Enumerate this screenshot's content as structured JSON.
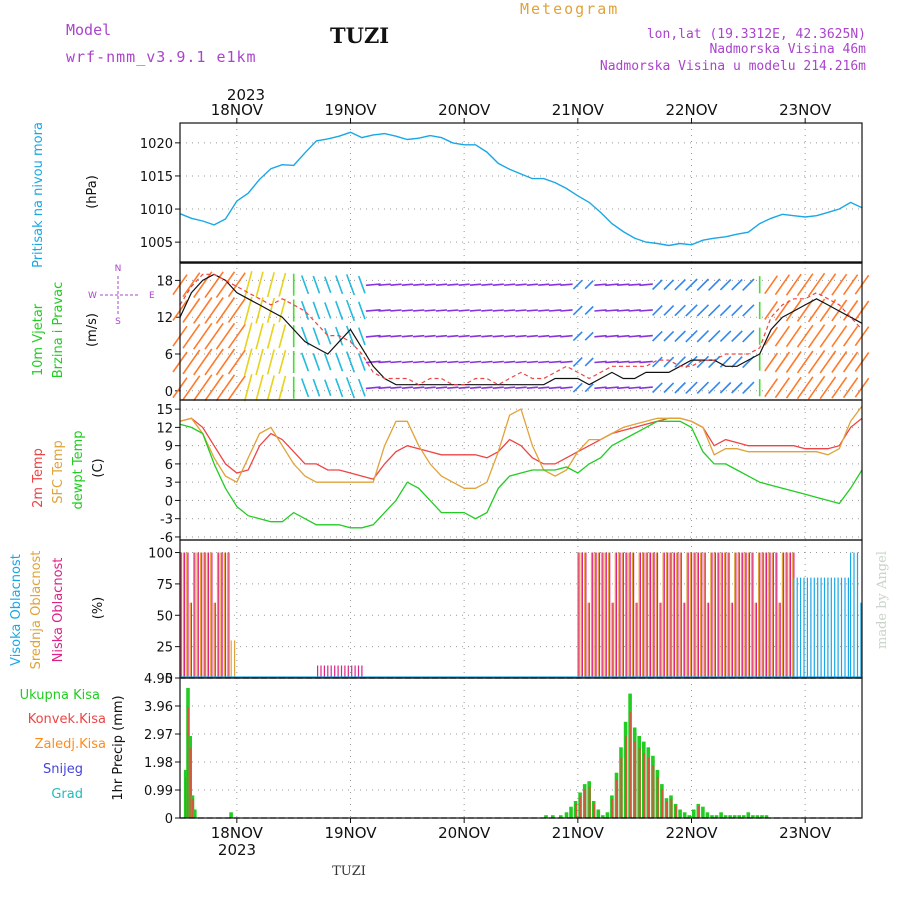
{
  "header": {
    "model_label": "Model",
    "model_name": "wrf-nmm_v3.9.1  e1km",
    "station_title": "TUZI",
    "meteogram_label": "Meteogram",
    "coords": "lon,lat (19.3312E, 42.3625N)",
    "altitude": "Nadmorska Visina 46m",
    "model_altitude": "Nadmorska Visina u modelu 214.216m",
    "footer_station": "TUZI",
    "credit": "made by Angel"
  },
  "colors": {
    "pressure": "#1aa7e6",
    "t2m": "#ee4444",
    "sfc": "#e0a33a",
    "dewpt": "#22cc22",
    "high_cloud": "#1aa7e6",
    "mid_cloud": "#e0a33a",
    "low_cloud": "#dd2288",
    "total_precip": "#22cc22",
    "conv_precip": "#ee4444",
    "frz_precip": "#ff8c1a",
    "snow": "#4444dd",
    "grad": "#22bbbb",
    "purple_text": "#aa44cc",
    "title_orange": "#e0a33a"
  },
  "time_axis": {
    "top_year": "2023",
    "bottom_year": "2023",
    "day_labels": [
      "18NOV",
      "19NOV",
      "20NOV",
      "21NOV",
      "22NOV",
      "23NOV"
    ]
  },
  "panels": {
    "pressure": {
      "ylabel1": "Pritisak na nivou mora",
      "ylabel2": "(hPa)",
      "ticks": [
        "1005",
        "1010",
        "1015",
        "1020"
      ]
    },
    "wind": {
      "ylabel1": "10m Vjetar",
      "ylabel2": "Brzina i Pravac",
      "ylabel3": "(m/s)",
      "ticks": [
        "0",
        "6",
        "12",
        "18"
      ],
      "compass": {
        "n": "N",
        "w": "W",
        "e": "E",
        "s": "S"
      }
    },
    "temp": {
      "ylabel1": "2m Temp",
      "ylabel2": "SFC Temp",
      "ylabel3": "dewpt Temp",
      "ylabel4": "(C)",
      "ticks": [
        "-6",
        "-3",
        "0",
        "3",
        "6",
        "9",
        "12",
        "15"
      ]
    },
    "cloud": {
      "ylabel1": "Visoka Oblacnost",
      "ylabel2": "Srednja Oblacnost",
      "ylabel3": "Niska Oblacnost",
      "ylabel4": "(%)",
      "ticks": [
        "0",
        "25",
        "50",
        "75",
        "100"
      ]
    },
    "precip": {
      "legend": [
        "Ukupna Kisa",
        "Konvek.Kisa",
        "Zaledj.Kisa",
        "Snijeg",
        "Grad"
      ],
      "ylabel": "1hr Precip (mm)",
      "ticks": [
        "0",
        "0.99",
        "1.98",
        "2.97",
        "3.96",
        "4.95"
      ]
    }
  },
  "chart_data": [
    {
      "type": "line",
      "name": "sea-level-pressure",
      "x": [
        -0.5,
        -0.4,
        -0.3,
        -0.2,
        -0.1,
        0.0,
        0.1,
        0.2,
        0.3,
        0.4,
        0.5,
        0.6,
        0.7,
        0.8,
        0.9,
        1.0,
        1.1,
        1.2,
        1.3,
        1.4,
        1.5,
        1.6,
        1.7,
        1.8,
        1.9,
        2.0,
        2.1,
        2.2,
        2.3,
        2.4,
        2.5,
        2.6,
        2.7,
        2.8,
        2.9,
        3.0,
        3.1,
        3.2,
        3.3,
        3.4,
        3.5,
        3.6,
        3.7,
        3.8,
        3.9,
        4.0,
        4.1,
        4.2,
        4.3,
        4.4,
        4.5,
        4.6,
        4.7,
        4.8,
        4.9,
        5.0,
        5.1,
        5.2,
        5.3,
        5.4,
        5.5
      ],
      "y": [
        1009.3,
        1008.6,
        1008.2,
        1007.6,
        1008.5,
        1011.2,
        1012.4,
        1014.5,
        1016.1,
        1016.7,
        1016.6,
        1018.5,
        1020.3,
        1020.6,
        1021.0,
        1021.6,
        1020.8,
        1021.2,
        1021.4,
        1021.0,
        1020.5,
        1020.7,
        1021.1,
        1020.8,
        1020.0,
        1019.7,
        1019.7,
        1018.6,
        1016.9,
        1016.0,
        1015.3,
        1014.6,
        1014.6,
        1014.0,
        1013.1,
        1012.0,
        1011.0,
        1009.5,
        1007.8,
        1006.6,
        1005.6,
        1005.0,
        1004.8,
        1004.5,
        1004.8,
        1004.6,
        1005.3,
        1005.6,
        1005.8,
        1006.2,
        1006.5,
        1007.8,
        1008.6,
        1009.2,
        1009.0,
        1008.8,
        1009.0,
        1009.5,
        1010.0,
        1011.0,
        1010.2
      ],
      "ylim": [
        1002.0,
        1023.0
      ]
    },
    {
      "type": "line",
      "name": "10m-wind",
      "x": [
        -0.5,
        -0.4,
        -0.3,
        -0.2,
        -0.1,
        0.0,
        0.1,
        0.2,
        0.3,
        0.4,
        0.5,
        0.6,
        0.7,
        0.8,
        0.9,
        1.0,
        1.1,
        1.2,
        1.3,
        1.4,
        1.5,
        1.6,
        1.7,
        1.8,
        1.9,
        2.0,
        2.1,
        2.2,
        2.3,
        2.4,
        2.5,
        2.6,
        2.7,
        2.8,
        2.9,
        3.0,
        3.1,
        3.2,
        3.3,
        3.4,
        3.5,
        3.6,
        3.7,
        3.8,
        3.9,
        4.0,
        4.1,
        4.2,
        4.3,
        4.4,
        4.5,
        4.6,
        4.7,
        4.8,
        4.9,
        5.0,
        5.1,
        5.2,
        5.3,
        5.4,
        5.5
      ],
      "speed": [
        12,
        16,
        18,
        19,
        18,
        16,
        15,
        14,
        13,
        12,
        10,
        8,
        7,
        6,
        8,
        10,
        7,
        4,
        2,
        1,
        1,
        1,
        1,
        1,
        1,
        1,
        1,
        1,
        1,
        1,
        1,
        1,
        1,
        2,
        2,
        2,
        1,
        2,
        3,
        2,
        2,
        3,
        3,
        3,
        4,
        5,
        5,
        5,
        4,
        4,
        5,
        6,
        10,
        12,
        13,
        14,
        15,
        14,
        13,
        12,
        11
      ],
      "gust": [
        14,
        17,
        19,
        19,
        18,
        17,
        16,
        15,
        14,
        15,
        14,
        13,
        11,
        9,
        9,
        8,
        6,
        3,
        2,
        2,
        2,
        1,
        2,
        2,
        1,
        1,
        2,
        2,
        1,
        2,
        3,
        2,
        2,
        3,
        4,
        3,
        2,
        3,
        4,
        4,
        4,
        4,
        5,
        5,
        4,
        4,
        5,
        5,
        6,
        6,
        6,
        7,
        12,
        14,
        15,
        15,
        16,
        15,
        14,
        12,
        10
      ],
      "direction_group": [
        "orange",
        "orange",
        "orange",
        "orange",
        "orange",
        "orange",
        "yellow",
        "yellow",
        "yellow",
        "yellow",
        "green",
        "cyan",
        "cyan",
        "cyan",
        "cyan",
        "cyan",
        "cyan",
        "purple",
        "purple",
        "purple",
        "purple",
        "purple",
        "purple",
        "purple",
        "purple",
        "purple",
        "purple",
        "purple",
        "purple",
        "purple",
        "purple",
        "purple",
        "purple",
        "purple",
        "purple",
        "blue",
        "blue",
        "purple",
        "purple",
        "purple",
        "purple",
        "purple",
        "blue",
        "blue",
        "blue",
        "blue",
        "blue",
        "blue",
        "blue",
        "blue",
        "blue",
        "green",
        "orange",
        "orange",
        "orange",
        "orange",
        "orange",
        "orange",
        "orange",
        "orange",
        "orange"
      ],
      "ylim": [
        -1.5,
        21.0
      ]
    },
    {
      "type": "line",
      "name": "temperature",
      "x": [
        -0.5,
        -0.4,
        -0.3,
        -0.2,
        -0.1,
        0.0,
        0.1,
        0.2,
        0.3,
        0.4,
        0.5,
        0.6,
        0.7,
        0.8,
        0.9,
        1.0,
        1.1,
        1.2,
        1.3,
        1.4,
        1.5,
        1.6,
        1.7,
        1.8,
        1.9,
        2.0,
        2.1,
        2.2,
        2.3,
        2.4,
        2.5,
        2.6,
        2.7,
        2.8,
        2.9,
        3.0,
        3.1,
        3.2,
        3.3,
        3.4,
        3.5,
        3.6,
        3.7,
        3.8,
        3.9,
        4.0,
        4.1,
        4.2,
        4.3,
        4.4,
        4.5,
        4.6,
        4.7,
        4.8,
        4.9,
        5.0,
        5.1,
        5.2,
        5.3,
        5.4,
        5.5
      ],
      "series": [
        {
          "name": "2m Temp",
          "values": [
            13,
            13.5,
            12,
            9,
            6,
            4.5,
            5,
            9,
            11,
            10,
            8,
            6,
            6,
            5,
            5,
            4.5,
            4,
            3.5,
            6,
            8,
            9,
            8.5,
            8,
            7.5,
            7.5,
            7.5,
            7.5,
            7,
            8,
            10,
            9,
            7,
            6,
            6,
            7,
            8,
            9,
            10,
            11,
            11.5,
            12,
            12.5,
            13,
            13.5,
            13.5,
            13,
            12,
            9,
            10,
            9.5,
            9,
            9,
            9,
            9,
            9,
            8.5,
            8.5,
            8.5,
            9,
            12,
            13.5
          ]
        },
        {
          "name": "SFC Temp",
          "values": [
            13,
            13.5,
            11,
            7,
            4,
            3,
            7,
            11,
            12,
            9,
            6,
            4,
            3,
            3,
            3,
            3,
            3,
            3,
            9,
            13,
            13,
            9,
            6,
            4,
            3,
            2,
            2,
            3,
            8,
            14,
            15,
            9,
            5,
            4,
            5,
            8,
            10,
            10,
            11,
            12,
            12.5,
            13,
            13.5,
            13.5,
            13.5,
            13,
            12,
            7.5,
            8.5,
            8.5,
            8,
            8,
            8,
            8,
            8,
            8,
            8,
            7.5,
            8.5,
            13,
            15.5
          ]
        },
        {
          "name": "dewpt Temp",
          "values": [
            12.5,
            12,
            11,
            6,
            2,
            -1,
            -2.5,
            -3,
            -3.5,
            -3.5,
            -2,
            -3,
            -4,
            -4,
            -4,
            -4.5,
            -4.5,
            -4,
            -2,
            0,
            3,
            2,
            0,
            -2,
            -2,
            -2,
            -3,
            -2,
            2,
            4,
            4.5,
            5,
            5,
            5,
            5.5,
            4.5,
            6,
            7,
            9,
            10,
            11,
            12,
            13,
            13,
            13,
            12,
            8,
            6,
            6,
            5,
            4,
            3,
            2.5,
            2,
            1.5,
            1,
            0.5,
            0,
            -0.5,
            2,
            5
          ]
        }
      ],
      "ylim": [
        -6.5,
        16.5
      ]
    },
    {
      "type": "bar",
      "name": "cloud-cover",
      "segments": [
        {
          "layer": "Niska",
          "from": -0.5,
          "to": -0.05,
          "value": 100
        },
        {
          "layer": "Srednja",
          "from": -0.5,
          "to": -0.05,
          "value": 100
        },
        {
          "layer": "Srednja",
          "from": -0.05,
          "to": 0.0,
          "value": 30
        },
        {
          "layer": "Niska",
          "from": 0.7,
          "to": 1.1,
          "value": 10
        },
        {
          "layer": "Srednja",
          "from": 3.0,
          "to": 4.9,
          "value": 100
        },
        {
          "layer": "Niska",
          "from": 3.0,
          "to": 4.9,
          "value": 100
        },
        {
          "layer": "Visoka",
          "from": 4.9,
          "to": 5.4,
          "value": 80
        },
        {
          "layer": "Visoka",
          "from": 5.4,
          "to": 5.5,
          "value": 100
        }
      ],
      "ylim": [
        0,
        110
      ]
    },
    {
      "type": "bar",
      "name": "precipitation",
      "x": [
        -0.45,
        -0.43,
        -0.41,
        -0.39,
        -0.37,
        -0.05,
        2.72,
        2.78,
        2.85,
        2.9,
        2.94,
        2.98,
        3.02,
        3.06,
        3.1,
        3.14,
        3.18,
        3.22,
        3.26,
        3.3,
        3.34,
        3.38,
        3.42,
        3.46,
        3.5,
        3.54,
        3.58,
        3.62,
        3.66,
        3.7,
        3.74,
        3.78,
        3.82,
        3.86,
        3.9,
        3.94,
        3.98,
        4.02,
        4.06,
        4.1,
        4.14,
        4.18,
        4.22,
        4.26,
        4.3,
        4.34,
        4.38,
        4.42,
        4.46,
        4.5,
        4.54,
        4.58,
        4.62,
        4.66
      ],
      "values": [
        1.7,
        4.6,
        2.9,
        0.8,
        0.3,
        0.2,
        0.1,
        0.1,
        0.1,
        0.2,
        0.4,
        0.6,
        0.9,
        1.2,
        1.3,
        0.6,
        0.3,
        0.1,
        0.2,
        0.8,
        1.6,
        2.5,
        3.4,
        4.4,
        3.2,
        2.9,
        2.7,
        2.5,
        2.2,
        1.7,
        1.2,
        0.7,
        0.8,
        0.5,
        0.3,
        0.2,
        0.1,
        0.3,
        0.5,
        0.4,
        0.2,
        0.1,
        0.1,
        0.2,
        0.1,
        0.1,
        0.1,
        0.1,
        0.1,
        0.2,
        0.1,
        0.1,
        0.1,
        0.1
      ],
      "ylim": [
        0,
        4.95
      ]
    }
  ]
}
